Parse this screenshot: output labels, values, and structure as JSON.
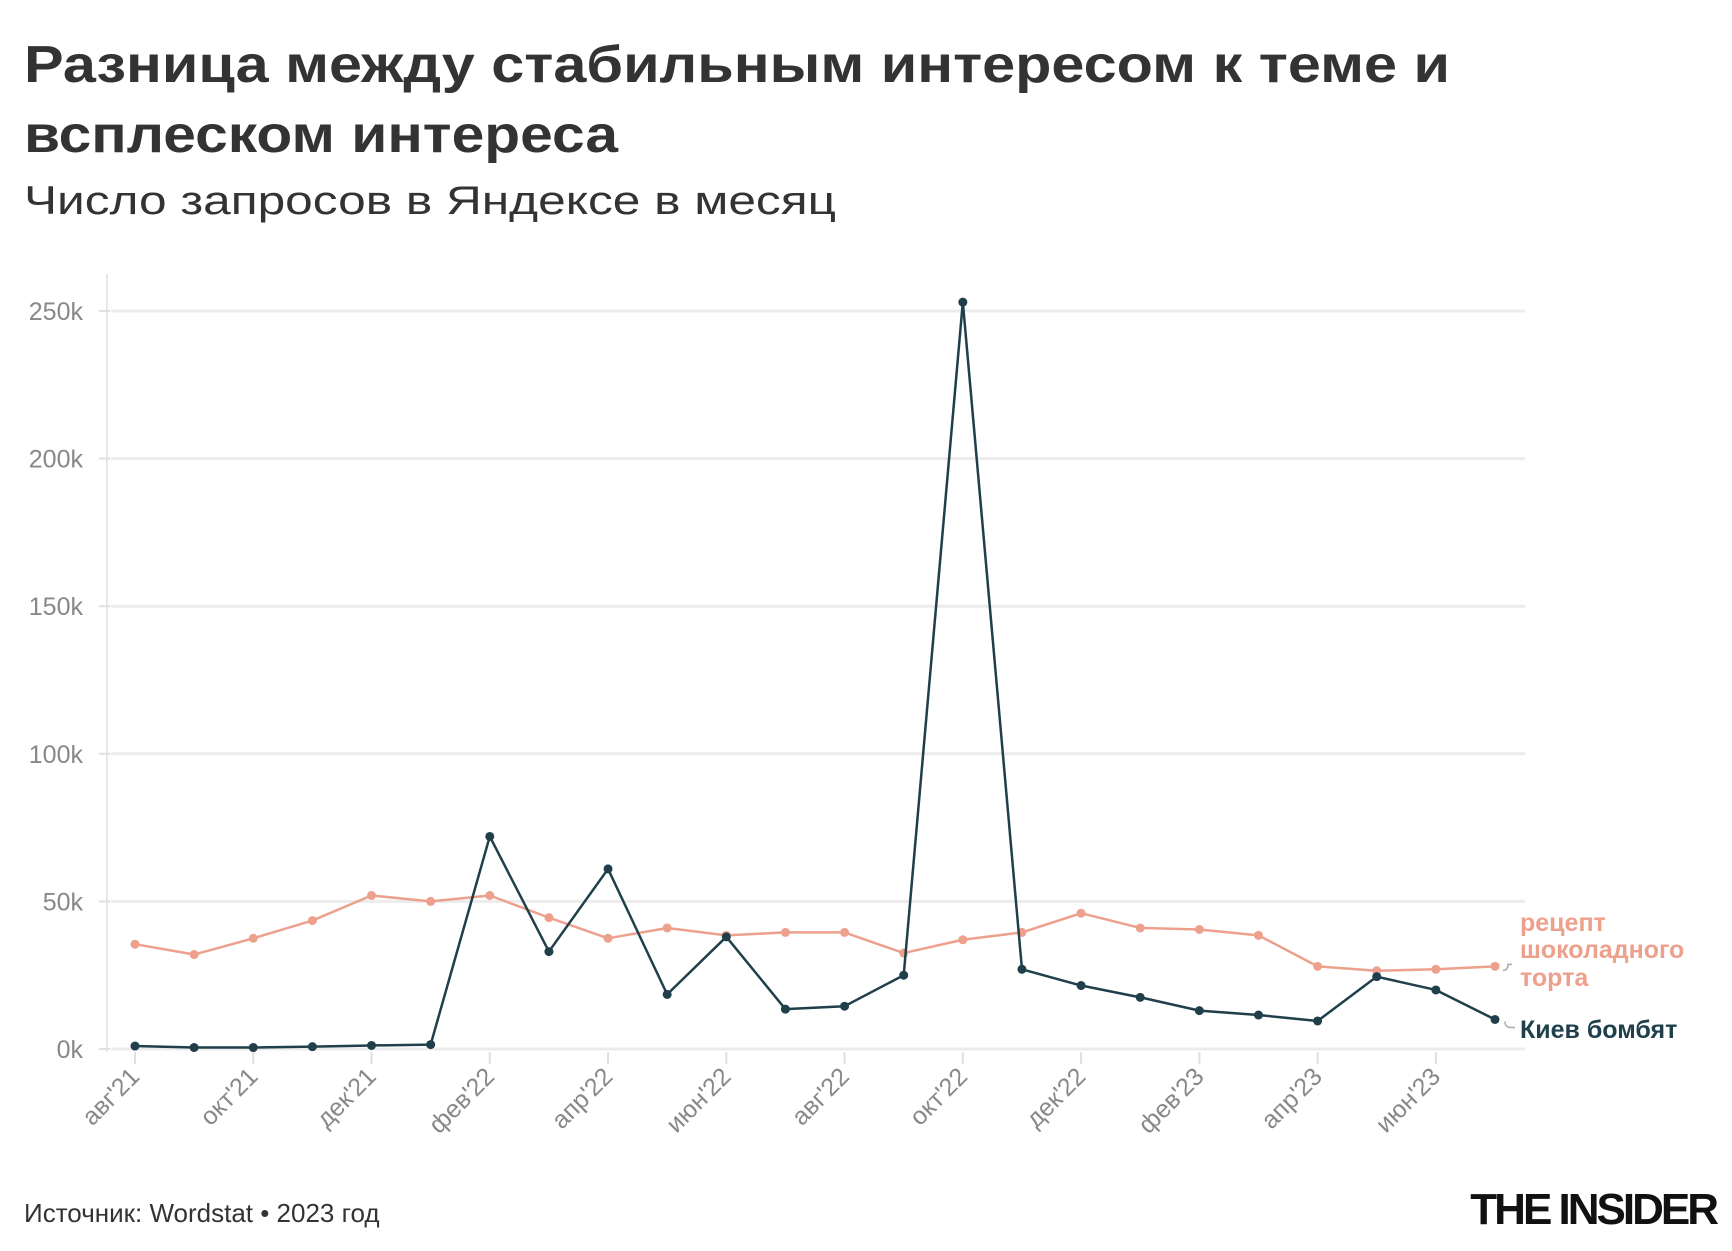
{
  "chart_data": {
    "type": "line",
    "title_lines": [
      "Разница между стабильным интересом к теме и",
      "всплеском интереса"
    ],
    "subtitle": "Число запросов в Яндексе в месяц",
    "x": [
      "авг'21",
      "сен'21",
      "окт'21",
      "ноя'21",
      "дек'21",
      "янв'22",
      "фев'22",
      "мар'22",
      "апр'22",
      "май'22",
      "июн'22",
      "июл'22",
      "авг'22",
      "сен'22",
      "окт'22",
      "ноя'22",
      "дек'22",
      "янв'23",
      "фев'23",
      "мар'23",
      "апр'23",
      "май'23",
      "июн'23",
      "июл'23"
    ],
    "x_tick_labels": [
      "авг'21",
      "окт'21",
      "дек'21",
      "фев'22",
      "апр'22",
      "июн'22",
      "авг'22",
      "окт'22",
      "дек'22",
      "фев'23",
      "апр'23",
      "июн'23"
    ],
    "y_tick_labels": [
      "0k",
      "50k",
      "100k",
      "150k",
      "200k",
      "250k"
    ],
    "y_ticks": [
      0,
      50000,
      100000,
      150000,
      200000,
      250000
    ],
    "ylim": [
      0,
      250000
    ],
    "grid": "horizontal",
    "series": [
      {
        "name": "рецепт шоколадного торта",
        "label_lines": [
          "рецепт",
          "шоколадного",
          "торта"
        ],
        "color": "#eda08c",
        "values": [
          35500,
          32000,
          37500,
          43500,
          52000,
          50000,
          52000,
          44500,
          37500,
          41000,
          38500,
          39500,
          39500,
          32500,
          37000,
          39500,
          46000,
          41000,
          40500,
          38500,
          28000,
          26500,
          27000,
          28000
        ]
      },
      {
        "name": "Киев бомбят",
        "label_lines": [
          "Киев бомбят"
        ],
        "color": "#1f3f4a",
        "values": [
          1000,
          500,
          500,
          800,
          1200,
          1500,
          72000,
          33000,
          61000,
          18500,
          38000,
          13500,
          14500,
          25000,
          253000,
          27000,
          21500,
          17500,
          13000,
          11500,
          9500,
          24500,
          20000,
          10000
        ]
      }
    ]
  },
  "footer": {
    "source": "Источник: Wordstat • 2023 год",
    "logo": "THE INSIDER"
  }
}
